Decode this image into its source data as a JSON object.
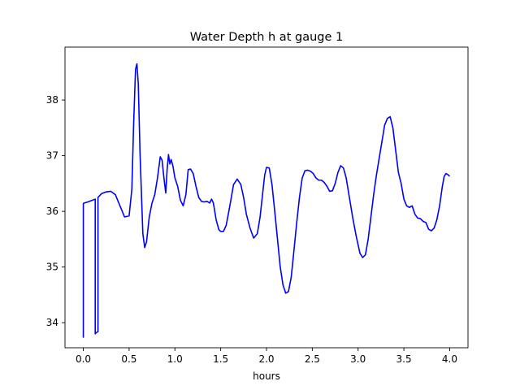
{
  "chart_data": {
    "type": "line",
    "title": "Water Depth h at gauge 1",
    "xlabel": "hours",
    "ylabel": "",
    "xlim": [
      -0.2,
      4.2
    ],
    "ylim": [
      33.55,
      38.95
    ],
    "xticks": [
      0.0,
      0.5,
      1.0,
      1.5,
      2.0,
      2.5,
      3.0,
      3.5,
      4.0
    ],
    "xtick_labels": [
      "0.0",
      "0.5",
      "1.0",
      "1.5",
      "2.0",
      "2.5",
      "3.0",
      "3.5",
      "4.0"
    ],
    "yticks": [
      34,
      35,
      36,
      37,
      38
    ],
    "ytick_labels": [
      "34",
      "35",
      "36",
      "37",
      "38"
    ],
    "grid": false,
    "series": [
      {
        "color": "#0000ff",
        "x": [
          0.0,
          0.0,
          0.01,
          0.05,
          0.1,
          0.13,
          0.13,
          0.14,
          0.16,
          0.16,
          0.2,
          0.25,
          0.3,
          0.35,
          0.4,
          0.45,
          0.5,
          0.53,
          0.55,
          0.57,
          0.585,
          0.6,
          0.62,
          0.65,
          0.67,
          0.69,
          0.72,
          0.75,
          0.78,
          0.81,
          0.84,
          0.86,
          0.88,
          0.9,
          0.915,
          0.93,
          0.945,
          0.96,
          0.98,
          1.0,
          1.03,
          1.06,
          1.09,
          1.12,
          1.145,
          1.17,
          1.2,
          1.23,
          1.26,
          1.29,
          1.32,
          1.35,
          1.38,
          1.4,
          1.42,
          1.45,
          1.48,
          1.5,
          1.53,
          1.56,
          1.6,
          1.64,
          1.68,
          1.72,
          1.75,
          1.78,
          1.82,
          1.86,
          1.9,
          1.93,
          1.96,
          1.98,
          2.0,
          2.03,
          2.06,
          2.09,
          2.12,
          2.15,
          2.18,
          2.21,
          2.24,
          2.27,
          2.3,
          2.33,
          2.36,
          2.39,
          2.42,
          2.45,
          2.48,
          2.51,
          2.54,
          2.57,
          2.6,
          2.63,
          2.66,
          2.69,
          2.72,
          2.75,
          2.78,
          2.81,
          2.84,
          2.87,
          2.9,
          2.94,
          2.98,
          3.02,
          3.05,
          3.08,
          3.11,
          3.14,
          3.17,
          3.2,
          3.23,
          3.26,
          3.29,
          3.32,
          3.35,
          3.38,
          3.41,
          3.44,
          3.47,
          3.5,
          3.53,
          3.56,
          3.59,
          3.62,
          3.65,
          3.68,
          3.71,
          3.74,
          3.77,
          3.8,
          3.83,
          3.86,
          3.89,
          3.92,
          3.94,
          3.96,
          3.98,
          4.0
        ],
        "y": [
          33.73,
          36.14,
          36.15,
          36.17,
          36.2,
          36.22,
          33.8,
          33.82,
          33.84,
          36.25,
          36.32,
          36.35,
          36.36,
          36.3,
          36.1,
          35.9,
          35.92,
          36.4,
          37.6,
          38.55,
          38.65,
          38.3,
          37.0,
          35.6,
          35.35,
          35.45,
          35.9,
          36.15,
          36.3,
          36.6,
          36.98,
          36.92,
          36.6,
          36.33,
          36.75,
          37.02,
          36.85,
          36.93,
          36.8,
          36.6,
          36.45,
          36.2,
          36.1,
          36.3,
          36.75,
          36.76,
          36.68,
          36.45,
          36.25,
          36.18,
          36.17,
          36.18,
          36.15,
          36.22,
          36.15,
          35.85,
          35.67,
          35.64,
          35.64,
          35.75,
          36.1,
          36.48,
          36.58,
          36.48,
          36.25,
          35.95,
          35.7,
          35.52,
          35.6,
          35.9,
          36.35,
          36.65,
          36.79,
          36.78,
          36.48,
          36.0,
          35.5,
          35.0,
          34.68,
          34.53,
          34.56,
          34.82,
          35.3,
          35.8,
          36.25,
          36.6,
          36.73,
          36.74,
          36.72,
          36.68,
          36.6,
          36.56,
          36.56,
          36.52,
          36.45,
          36.36,
          36.37,
          36.5,
          36.7,
          36.82,
          36.78,
          36.6,
          36.3,
          35.9,
          35.55,
          35.25,
          35.17,
          35.22,
          35.5,
          35.9,
          36.3,
          36.65,
          36.95,
          37.25,
          37.55,
          37.67,
          37.7,
          37.5,
          37.1,
          36.7,
          36.5,
          36.22,
          36.1,
          36.07,
          36.1,
          35.95,
          35.88,
          35.87,
          35.82,
          35.8,
          35.68,
          35.65,
          35.7,
          35.85,
          36.1,
          36.45,
          36.63,
          36.68,
          36.66,
          36.63
        ]
      }
    ]
  }
}
